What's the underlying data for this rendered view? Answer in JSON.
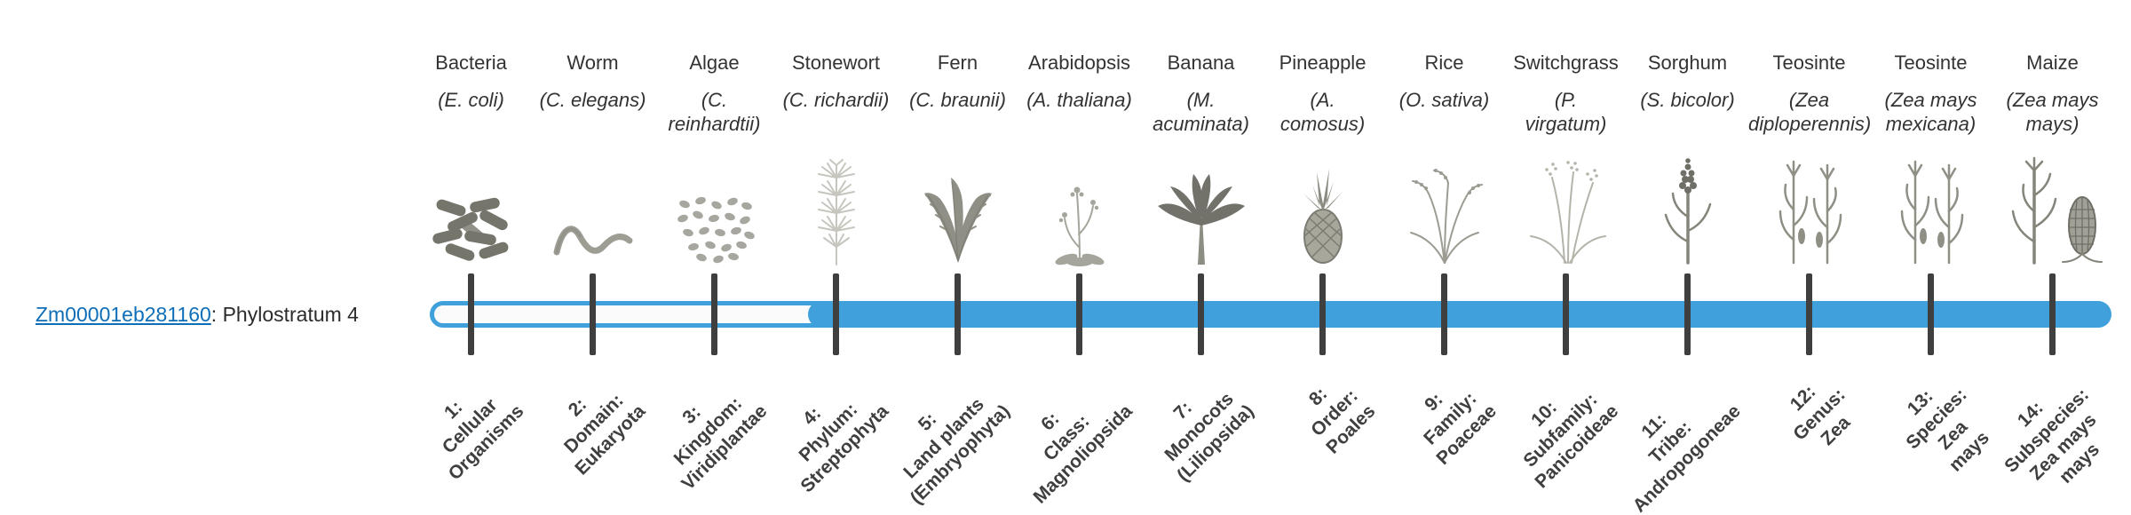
{
  "gene": {
    "id": "Zm00001eb281160",
    "suffix": ": Phylostratum 4"
  },
  "colors": {
    "track_fill": "#3FA0DB",
    "track_outline": "#3FA0DB",
    "unfilled_interior": "#FBFBFB",
    "tick": "#3F3F3F",
    "link": "#0E6EB8",
    "text": "#3C3C3C"
  },
  "strata": [
    {
      "number": 1,
      "common_name": "Bacteria",
      "scientific_name_lines": [
        "(E. coli)"
      ],
      "icon": "bacteria-icon",
      "axis_label_lines": [
        "1:",
        "Cellular",
        "Organisms"
      ],
      "filled": false
    },
    {
      "number": 2,
      "common_name": "Worm",
      "scientific_name_lines": [
        "(C. elegans)"
      ],
      "icon": "worm-icon",
      "axis_label_lines": [
        "2:",
        "Domain:",
        "Eukaryota"
      ],
      "filled": false
    },
    {
      "number": 3,
      "common_name": "Algae",
      "scientific_name_lines": [
        "(C.",
        "reinhardtii)"
      ],
      "icon": "algae-icon",
      "axis_label_lines": [
        "3:",
        "Kingdom:",
        "Viridiplantae"
      ],
      "filled": false
    },
    {
      "number": 4,
      "common_name": "Stonewort",
      "scientific_name_lines": [
        "(C. richardii)"
      ],
      "icon": "stonewort-icon",
      "axis_label_lines": [
        "4:",
        "Phylum:",
        "Streptophyta"
      ],
      "filled": true
    },
    {
      "number": 5,
      "common_name": "Fern",
      "scientific_name_lines": [
        "(C. braunii)"
      ],
      "icon": "fern-icon",
      "axis_label_lines": [
        "5:",
        "Land plants",
        "(Embryophyta)"
      ],
      "filled": true
    },
    {
      "number": 6,
      "common_name": "Arabidopsis",
      "scientific_name_lines": [
        "(A. thaliana)"
      ],
      "icon": "arabidopsis-icon",
      "axis_label_lines": [
        "6:",
        "Class:",
        "Magnoliopsida"
      ],
      "filled": true
    },
    {
      "number": 7,
      "common_name": "Banana",
      "scientific_name_lines": [
        "(M.",
        "acuminata)"
      ],
      "icon": "banana-icon",
      "axis_label_lines": [
        "7:",
        "Monocots",
        "(Liliopsida)"
      ],
      "filled": true
    },
    {
      "number": 8,
      "common_name": "Pineapple",
      "scientific_name_lines": [
        "(A.",
        "comosus)"
      ],
      "icon": "pineapple-icon",
      "axis_label_lines": [
        "8:",
        "Order:",
        "Poales"
      ],
      "filled": true
    },
    {
      "number": 9,
      "common_name": "Rice",
      "scientific_name_lines": [
        "(O. sativa)"
      ],
      "icon": "rice-icon",
      "axis_label_lines": [
        "9:",
        "Family:",
        "Poaceae"
      ],
      "filled": true
    },
    {
      "number": 10,
      "common_name": "Switchgrass",
      "scientific_name_lines": [
        "(P.",
        "virgatum)"
      ],
      "icon": "switchgrass-icon",
      "axis_label_lines": [
        "10:",
        "Subfamily:",
        "Panicoideae"
      ],
      "filled": true
    },
    {
      "number": 11,
      "common_name": "Sorghum",
      "scientific_name_lines": [
        "(S. bicolor)"
      ],
      "icon": "sorghum-icon",
      "axis_label_lines": [
        "11:",
        "Tribe:",
        "Andropogoneae"
      ],
      "filled": true
    },
    {
      "number": 12,
      "common_name": "Teosinte",
      "scientific_name_lines": [
        "(Zea",
        "diploperennis)"
      ],
      "icon": "teosinte-icon",
      "axis_label_lines": [
        "12:",
        "Genus:",
        "Zea"
      ],
      "filled": true
    },
    {
      "number": 13,
      "common_name": "Teosinte",
      "scientific_name_lines": [
        "(Zea mays",
        "mexicana)"
      ],
      "icon": "teosinte-icon",
      "axis_label_lines": [
        "13:",
        "Species:",
        "Zea",
        "mays"
      ],
      "filled": true
    },
    {
      "number": 14,
      "common_name": "Maize",
      "scientific_name_lines": [
        "(Zea mays",
        "mays)"
      ],
      "icon": "maize-icon",
      "axis_label_lines": [
        "14:",
        "Subspecies:",
        "Zea mays",
        "mays"
      ],
      "filled": true
    }
  ],
  "chart_data": {
    "type": "bar",
    "title": "Zm00001eb281160: Phylostratum 4",
    "gene_phylostratum": 4,
    "categories": [
      "1: Cellular Organisms",
      "2: Domain: Eukaryota",
      "3: Kingdom: Viridiplantae",
      "4: Phylum: Streptophyta",
      "5: Land plants (Embryophyta)",
      "6: Class: Magnoliopsida",
      "7: Monocots (Liliopsida)",
      "8: Order: Poales",
      "9: Family: Poaceae",
      "10: Subfamily: Panicoideae",
      "11: Tribe: Andropogoneae",
      "12: Genus: Zea",
      "13: Species: Zea mays",
      "14: Subspecies: Zea mays mays"
    ],
    "values": [
      0,
      0,
      0,
      1,
      1,
      1,
      1,
      1,
      1,
      1,
      1,
      1,
      1,
      1
    ],
    "values_meaning": "1 = stratum covered by the filled blue bar (gene age span), 0 = stratum under the outlined unfilled bar",
    "xlabel": "",
    "ylabel": "",
    "legend": false
  }
}
